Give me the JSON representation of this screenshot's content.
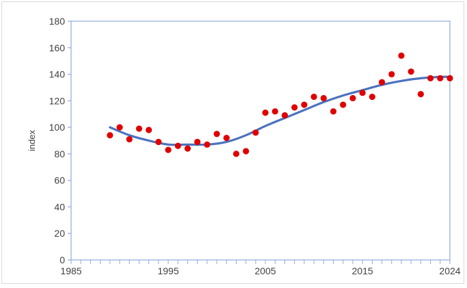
{
  "chart_data": {
    "type": "scatter",
    "title": "",
    "xlabel": "",
    "ylabel": "index",
    "xlim": [
      1985,
      2024
    ],
    "ylim": [
      0,
      180
    ],
    "x_ticks": [
      1985,
      1995,
      2005,
      2015,
      2024
    ],
    "y_ticks": [
      0,
      20,
      40,
      60,
      80,
      100,
      120,
      140,
      160,
      180
    ],
    "grid": false,
    "legend": "none",
    "colors": {
      "points": "#e00000",
      "trend": "#4a72c0",
      "axis": "#8faadc"
    },
    "series": [
      {
        "type": "scatter",
        "x": [
          1989,
          1990,
          1991,
          1992,
          1993,
          1994,
          1995,
          1996,
          1997,
          1998,
          1999,
          2000,
          2001,
          2002,
          2003,
          2004,
          2005,
          2006,
          2007,
          2008,
          2009,
          2010,
          2011,
          2012,
          2013,
          2014,
          2015,
          2016,
          2017,
          2018,
          2019,
          2020,
          2021,
          2022,
          2023,
          2024
        ],
        "y": [
          94,
          100,
          91,
          99,
          98,
          89,
          83,
          86,
          84,
          89,
          87,
          95,
          92,
          80,
          82,
          96,
          111,
          112,
          109,
          115,
          117,
          123,
          122,
          112,
          117,
          122,
          126,
          123,
          134,
          140,
          154,
          142,
          125,
          137,
          137,
          137
        ]
      },
      {
        "type": "line",
        "smooth": true,
        "x": [
          1989,
          1991,
          1993,
          1995,
          1997,
          1999,
          2001,
          2003,
          2005,
          2007,
          2009,
          2011,
          2013,
          2015,
          2017,
          2019,
          2021,
          2023,
          2024
        ],
        "y": [
          100,
          94,
          90,
          87,
          87,
          87,
          89,
          94,
          101,
          107,
          113,
          119,
          124,
          128,
          132,
          135,
          137,
          138,
          138
        ]
      }
    ]
  }
}
